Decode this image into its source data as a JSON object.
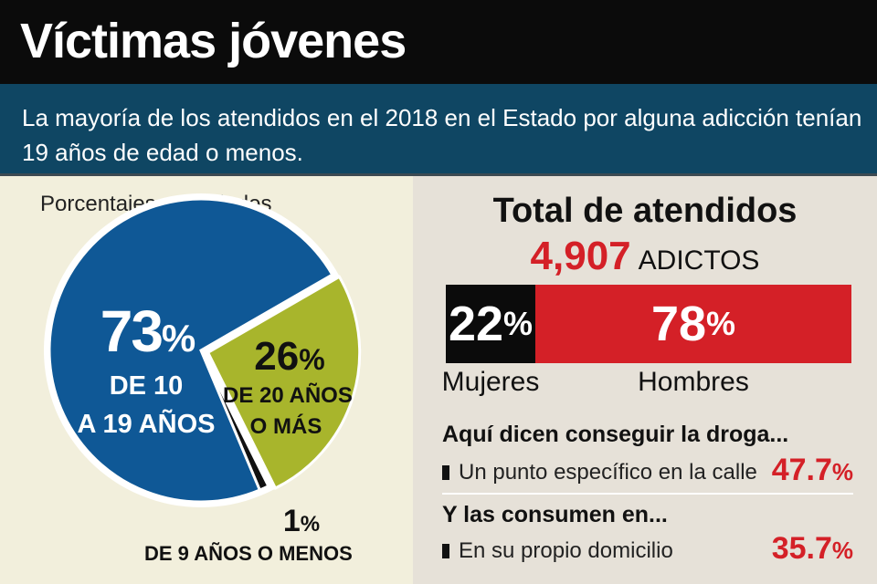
{
  "header": {
    "title": "Víctimas jóvenes",
    "subtitle": "La mayoría de los atendidos en el 2018 en el Estado por alguna adicción tenían 19 años de edad o menos."
  },
  "chart_data": [
    {
      "type": "pie",
      "title": "Porcentajes por edades",
      "slices": [
        {
          "value": 73,
          "value_label": "73",
          "unit": "%",
          "label_line1": "DE 10",
          "label_line2": "A 19 AÑOS",
          "color": "#0f5896"
        },
        {
          "value": 26,
          "value_label": "26",
          "unit": "%",
          "label_line1": "DE 20 AÑOS",
          "label_line2": "O MÁS",
          "color": "#a8b52c"
        },
        {
          "value": 1,
          "value_label": "1",
          "unit": "%",
          "label_line1": "DE 9 AÑOS O MENOS",
          "label_line2": "",
          "color": "#111111"
        }
      ]
    },
    {
      "type": "bar",
      "title": "Total de atendidos",
      "total": "4,907",
      "total_unit": "ADICTOS",
      "categories": [
        "Mujeres",
        "Hombres"
      ],
      "values": [
        22,
        78
      ],
      "value_labels": [
        "22",
        "78"
      ],
      "unit": "%",
      "colors": [
        "#0b0b0b",
        "#d42027"
      ]
    }
  ],
  "findings": [
    {
      "question": "Aquí dicen conseguir la droga...",
      "answer": "Un punto específico en la calle",
      "value": "47.7",
      "unit": "%"
    },
    {
      "question": "Y las consumen en...",
      "answer": "En su propio domicilio",
      "value": "35.7",
      "unit": "%"
    }
  ]
}
